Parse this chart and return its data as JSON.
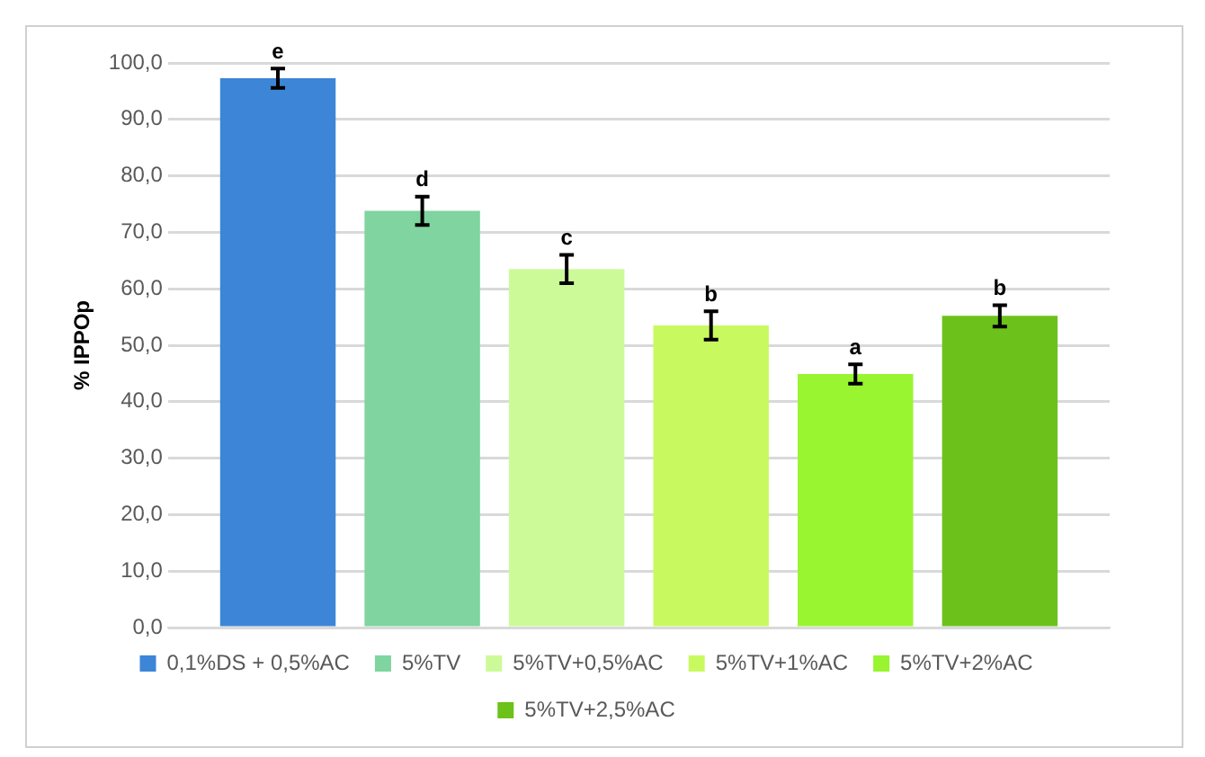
{
  "chart_data": {
    "type": "bar",
    "ylabel": "% IPPOp",
    "categories": [
      null
    ],
    "series": [
      {
        "name": "0,1%DS + 0,5%AC",
        "color": "#3d85d6",
        "values": [
          97.3
        ],
        "errors": [
          1.7
        ]
      },
      {
        "name": "5%TV",
        "color": "#7fd4a0",
        "values": [
          73.8
        ],
        "errors": [
          2.5
        ]
      },
      {
        "name": "5%TV+0,5%AC",
        "color": "#ccfa98",
        "values": [
          63.5
        ],
        "errors": [
          2.5
        ]
      },
      {
        "name": "5%TV+1%AC",
        "color": "#c8fa60",
        "values": [
          53.5
        ],
        "errors": [
          2.5
        ]
      },
      {
        "name": "5%TV+2%AC",
        "color": "#98f530",
        "values": [
          44.9
        ],
        "errors": [
          1.7
        ]
      },
      {
        "name": "5%TV+2,5%AC",
        "color": "#6cc21a",
        "values": [
          55.2
        ],
        "errors": [
          1.9
        ]
      }
    ],
    "annotations": [
      "e",
      "d",
      "c",
      "b",
      "a",
      "b"
    ],
    "ylim": [
      0,
      100
    ],
    "yticks": [
      {
        "value": 0,
        "label": "0,0"
      },
      {
        "value": 10,
        "label": "10,0"
      },
      {
        "value": 20,
        "label": "20,0"
      },
      {
        "value": 30,
        "label": "30,0"
      },
      {
        "value": 40,
        "label": "40,0"
      },
      {
        "value": 50,
        "label": "50,0"
      },
      {
        "value": 60,
        "label": "60,0"
      },
      {
        "value": 70,
        "label": "70,0"
      },
      {
        "value": 80,
        "label": "80,0"
      },
      {
        "value": 90,
        "label": "90,0"
      },
      {
        "value": 100,
        "label": "100,0"
      }
    ],
    "grid": "y",
    "legend": "bottom",
    "tick_labels": "y"
  }
}
